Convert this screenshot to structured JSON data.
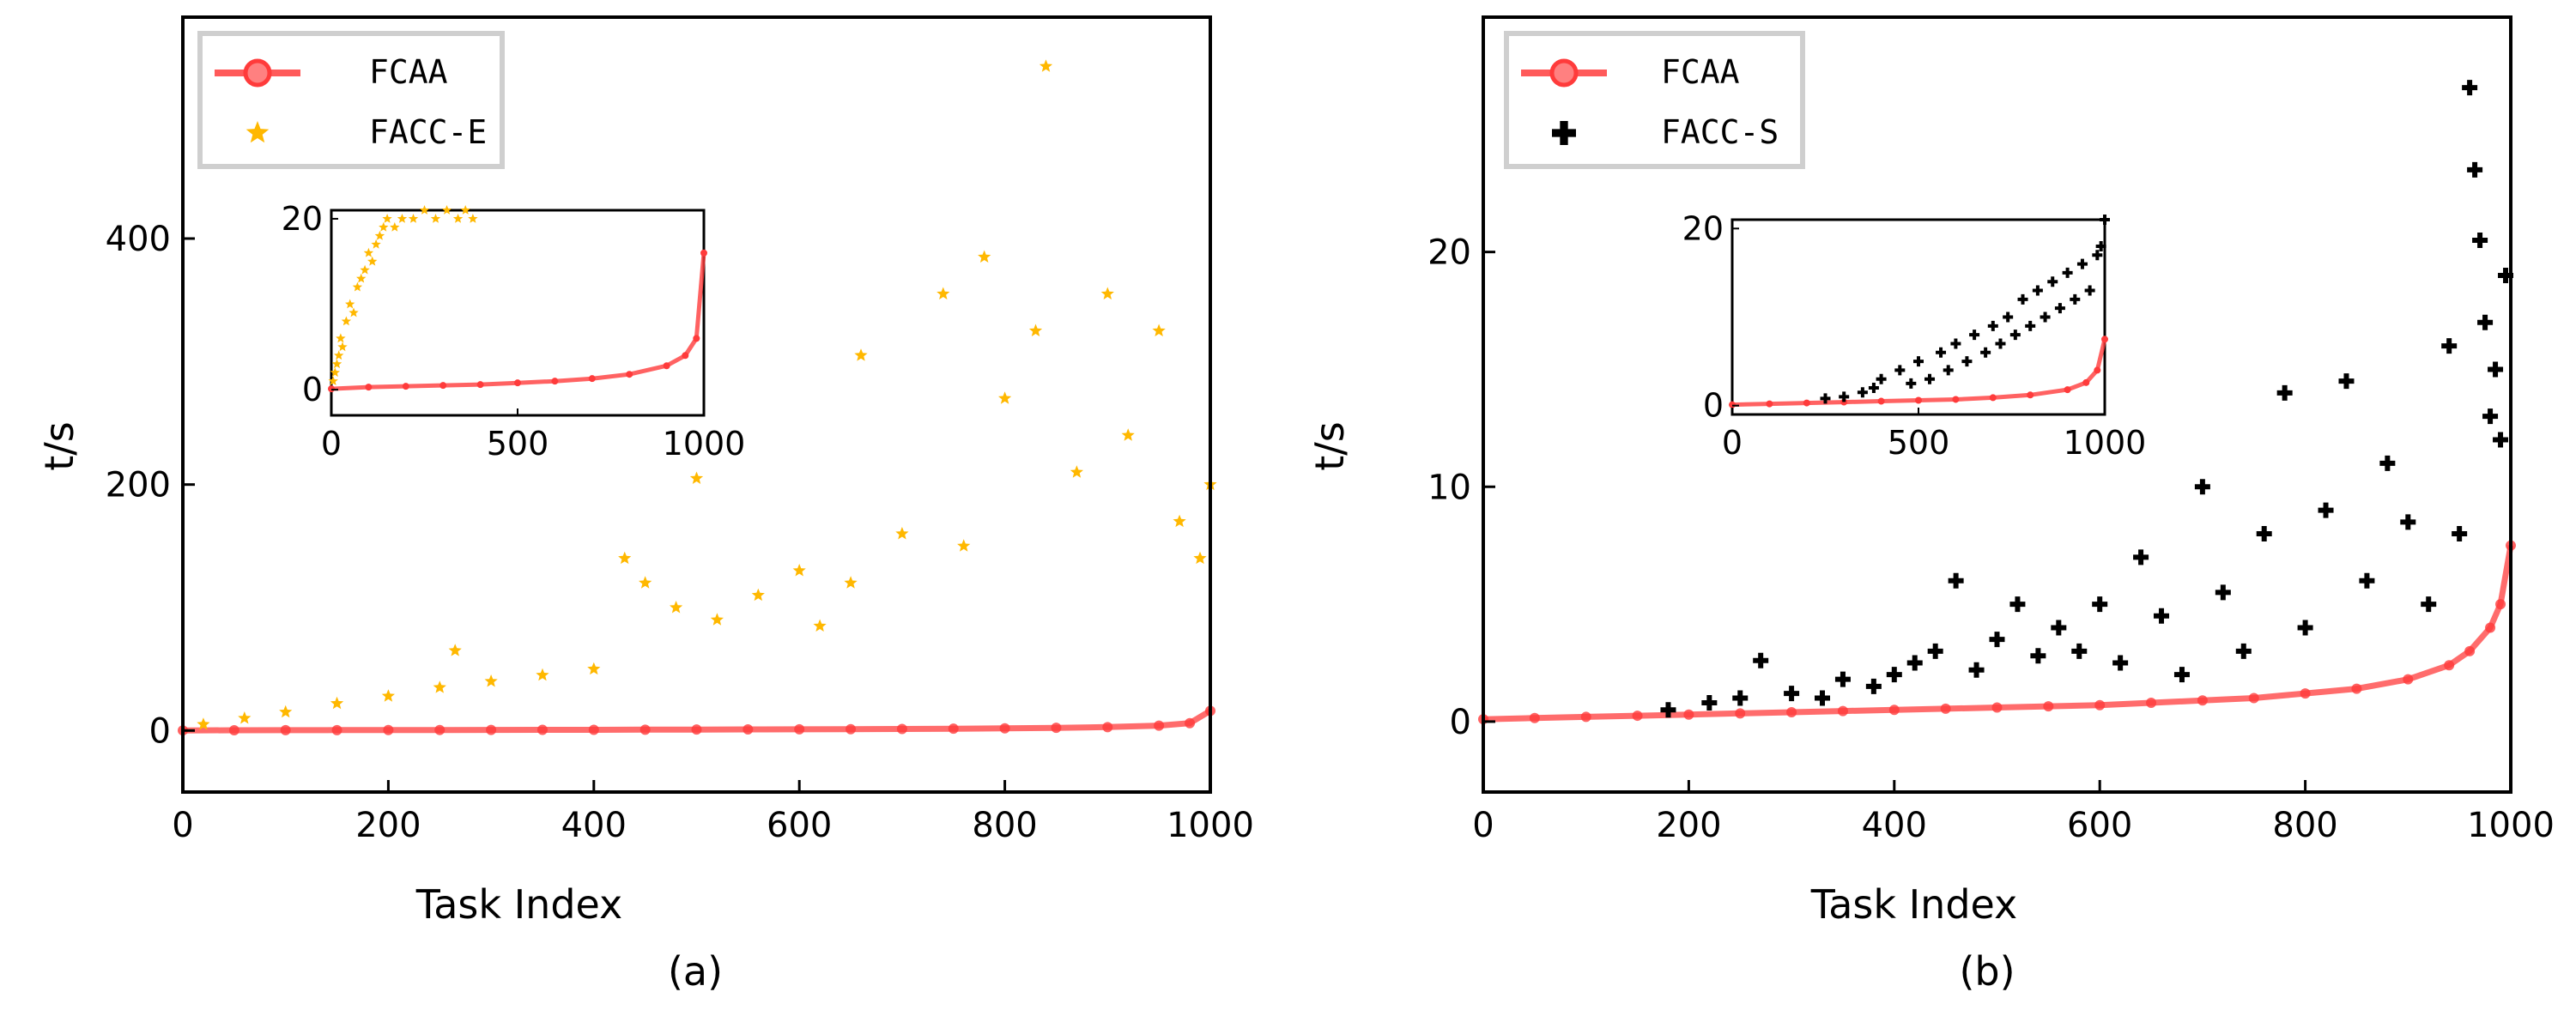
{
  "chart_data": [
    {
      "type": "scatter",
      "caption": "(a)",
      "xlabel": "Task Index",
      "ylabel": "t/s",
      "xlim": [
        0,
        1000
      ],
      "ylim": [
        -50,
        580
      ],
      "xticks": [
        0,
        200,
        400,
        600,
        800,
        1000
      ],
      "yticks": [
        0,
        200,
        400
      ],
      "legend_position": "top-left",
      "series": [
        {
          "name": "FCAA",
          "kind": "line-with-markers",
          "color": "#ff3b3b",
          "x": [
            0,
            50,
            100,
            150,
            200,
            250,
            300,
            350,
            400,
            450,
            500,
            550,
            600,
            650,
            700,
            750,
            800,
            850,
            900,
            950,
            980,
            1000
          ],
          "y": [
            0.1,
            0.2,
            0.3,
            0.35,
            0.4,
            0.45,
            0.5,
            0.55,
            0.6,
            0.7,
            0.8,
            0.9,
            1.0,
            1.1,
            1.3,
            1.5,
            1.8,
            2.2,
            2.8,
            4.0,
            6.0,
            16.0
          ]
        },
        {
          "name": "FACC-E",
          "kind": "scatter",
          "marker": "star",
          "color": "#ffb800",
          "x": [
            20,
            60,
            100,
            150,
            200,
            250,
            265,
            300,
            350,
            400,
            430,
            450,
            480,
            500,
            520,
            560,
            600,
            620,
            650,
            660,
            700,
            740,
            760,
            780,
            800,
            830,
            840,
            870,
            900,
            920,
            950,
            970,
            990,
            1000
          ],
          "y": [
            5,
            10,
            15,
            22,
            28,
            35,
            65,
            40,
            45,
            50,
            140,
            120,
            100,
            205,
            90,
            110,
            130,
            85,
            120,
            305,
            160,
            355,
            150,
            385,
            270,
            325,
            540,
            210,
            355,
            240,
            325,
            170,
            140,
            200
          ]
        }
      ],
      "inset": {
        "xlim": [
          0,
          1000
        ],
        "ylim": [
          -3,
          21
        ],
        "xticks": [
          0,
          500,
          1000
        ],
        "yticks": [
          0,
          20
        ],
        "series": [
          {
            "name": "FCAA",
            "x": [
              0,
              100,
              200,
              300,
              400,
              500,
              600,
              700,
              800,
              900,
              950,
              980,
              1000
            ],
            "y": [
              0.1,
              0.3,
              0.4,
              0.5,
              0.6,
              0.8,
              1.0,
              1.3,
              1.8,
              2.8,
              4.0,
              6.0,
              16.0
            ]
          },
          {
            "name": "FACC-E",
            "x": [
              5,
              10,
              15,
              20,
              25,
              30,
              40,
              50,
              60,
              70,
              80,
              90,
              100,
              110,
              120,
              130,
              140,
              150,
              170,
              190,
              220,
              250,
              280,
              310,
              340,
              360,
              380
            ],
            "y": [
              1,
              2,
              3,
              4,
              6,
              5,
              8,
              10,
              9,
              12,
              13,
              14,
              16,
              15,
              17,
              18,
              19,
              20,
              19,
              20,
              20,
              21,
              20,
              21,
              20,
              21,
              20
            ]
          }
        ]
      }
    },
    {
      "type": "scatter",
      "caption": "(b)",
      "xlabel": "Task Index",
      "ylabel": "t/s",
      "xlim": [
        0,
        1000
      ],
      "ylim": [
        -3,
        30
      ],
      "xticks": [
        0,
        200,
        400,
        600,
        800,
        1000
      ],
      "yticks": [
        0,
        10,
        20
      ],
      "legend_position": "top-left",
      "series": [
        {
          "name": "FCAA",
          "kind": "line-with-markers",
          "color": "#ff3b3b",
          "x": [
            0,
            50,
            100,
            150,
            200,
            250,
            300,
            350,
            400,
            450,
            500,
            550,
            600,
            650,
            700,
            750,
            800,
            850,
            900,
            940,
            960,
            980,
            990,
            1000
          ],
          "y": [
            0.1,
            0.15,
            0.2,
            0.25,
            0.3,
            0.35,
            0.4,
            0.45,
            0.5,
            0.55,
            0.6,
            0.65,
            0.7,
            0.8,
            0.9,
            1.0,
            1.2,
            1.4,
            1.8,
            2.4,
            3.0,
            4.0,
            5.0,
            7.5
          ]
        },
        {
          "name": "FACC-S",
          "kind": "scatter",
          "marker": "plus",
          "color": "#000000",
          "x": [
            180,
            220,
            250,
            270,
            300,
            330,
            350,
            380,
            400,
            420,
            440,
            460,
            480,
            500,
            520,
            540,
            560,
            580,
            600,
            620,
            640,
            660,
            680,
            700,
            720,
            740,
            760,
            780,
            800,
            820,
            840,
            860,
            880,
            900,
            920,
            940,
            950,
            960,
            965,
            970,
            975,
            980,
            985,
            990,
            995
          ],
          "y": [
            0.5,
            0.8,
            1.0,
            2.6,
            1.2,
            1.0,
            1.8,
            1.5,
            2.0,
            2.5,
            3.0,
            6.0,
            2.2,
            3.5,
            5.0,
            2.8,
            4.0,
            3.0,
            5.0,
            2.5,
            7.0,
            4.5,
            2.0,
            10.0,
            5.5,
            3.0,
            8.0,
            14.0,
            4.0,
            9.0,
            14.5,
            6.0,
            11.0,
            8.5,
            5.0,
            16.0,
            8.0,
            27.0,
            23.5,
            20.5,
            17.0,
            13.0,
            15.0,
            12.0,
            19.0
          ]
        }
      ],
      "inset": {
        "xlim": [
          0,
          1000
        ],
        "ylim": [
          -1,
          21
        ],
        "xticks": [
          0,
          500,
          1000
        ],
        "yticks": [
          0,
          20
        ],
        "series": [
          {
            "name": "FCAA",
            "x": [
              0,
              100,
              200,
              300,
              400,
              500,
              600,
              700,
              800,
              900,
              950,
              980,
              1000
            ],
            "y": [
              0.1,
              0.2,
              0.3,
              0.4,
              0.5,
              0.6,
              0.7,
              0.9,
              1.2,
              1.8,
              2.6,
              4.0,
              7.5
            ]
          },
          {
            "name": "FACC-S",
            "x": [
              250,
              300,
              350,
              380,
              400,
              450,
              480,
              500,
              530,
              560,
              580,
              600,
              630,
              650,
              680,
              700,
              720,
              740,
              760,
              780,
              800,
              820,
              840,
              860,
              880,
              900,
              920,
              940,
              960,
              980,
              990,
              1000
            ],
            "y": [
              0.8,
              1.0,
              1.5,
              2.0,
              3.0,
              4.0,
              2.5,
              5.0,
              3.0,
              6.0,
              4.0,
              7.0,
              5.0,
              8.0,
              6.0,
              9.0,
              7.0,
              10.0,
              8.0,
              12.0,
              9.0,
              13.0,
              10.0,
              14.0,
              11.0,
              15.0,
              12.0,
              16.0,
              13.0,
              17.0,
              18.0,
              21.0
            ]
          }
        ]
      }
    }
  ]
}
